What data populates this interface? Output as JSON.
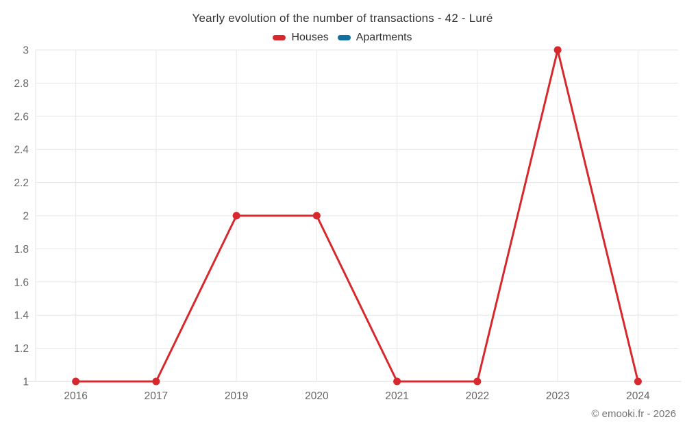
{
  "chart": {
    "title": "Yearly evolution of the number of transactions - 42 - Luré",
    "credit": "© emooki.fr - 2026",
    "legend": [
      {
        "label": "Houses",
        "color": "#d7282d"
      },
      {
        "label": "Apartments",
        "color": "#1270a0"
      }
    ]
  },
  "chart_data": {
    "type": "line",
    "title": "Yearly evolution of the number of transactions - 42 - Luré",
    "categories": [
      "2016",
      "2017",
      "2019",
      "2020",
      "2021",
      "2022",
      "2023",
      "2024"
    ],
    "series": [
      {
        "name": "Houses",
        "color": "#d7282d",
        "values": [
          1,
          1,
          2,
          2,
          1,
          1,
          3,
          1
        ]
      },
      {
        "name": "Apartments",
        "color": "#1270a0",
        "values": []
      }
    ],
    "xlabel": "",
    "ylabel": "",
    "ylim": [
      1,
      3
    ],
    "ytick_step": 0.2,
    "ytick_labels": [
      "1",
      "1.2",
      "1.4",
      "1.6",
      "1.8",
      "2",
      "2.2",
      "2.4",
      "2.6",
      "2.8",
      "3"
    ],
    "grid": true,
    "legend_position": "top-center",
    "marker": "circle"
  }
}
